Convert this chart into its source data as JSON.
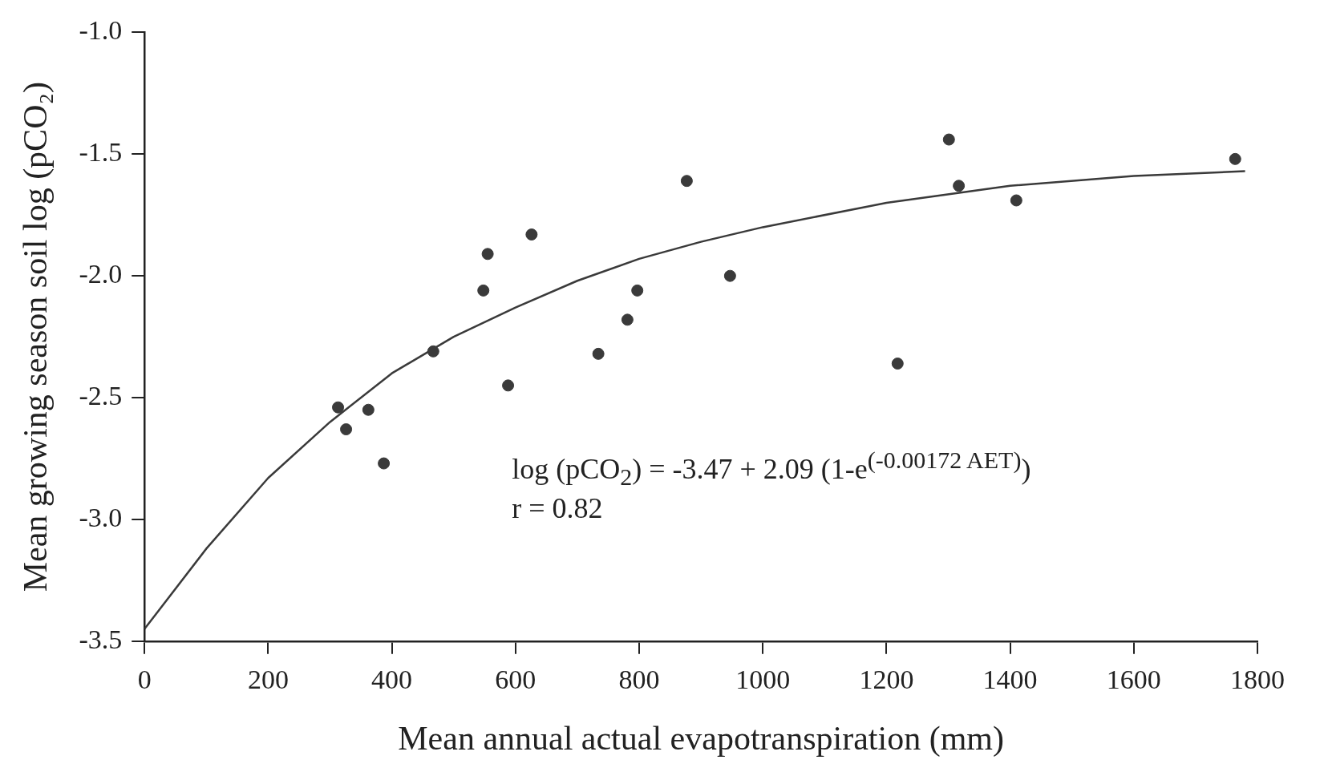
{
  "chart_data": {
    "type": "scatter",
    "xlabel": "Mean annual actual evapotranspiration (mm)",
    "ylabel": "Mean growing season soil log (pCO₂)",
    "xlim": [
      0,
      1800
    ],
    "ylim": [
      -3.5,
      -1.0
    ],
    "xticks": [
      0,
      200,
      400,
      600,
      800,
      1000,
      1200,
      1400,
      1600,
      1800
    ],
    "yticks": [
      {
        "value": -1,
        "label": "-1.0"
      },
      -1.5,
      {
        "value": -2,
        "label": "-2.0"
      },
      -2.5,
      {
        "value": -3,
        "label": "-3.0"
      },
      -3.5
    ],
    "grid": false,
    "legend": false,
    "marker": "circle",
    "annotations": [
      "log (pCO$_{2}$) = -3.47 + 2.09 (1-e$^{(-0.00172 AET)}$)",
      "r = 0.82"
    ],
    "series": [
      {
        "type": "scatter",
        "color": "#3a3a3a",
        "x": [
          313,
          326,
          362,
          387,
          467,
          548,
          555,
          588,
          626,
          734,
          781,
          797,
          877,
          947,
          1218,
          1301,
          1317,
          1410,
          1764
        ],
        "values": [
          -2.54,
          -2.63,
          -2.55,
          -2.77,
          -2.31,
          -2.06,
          -1.91,
          -2.45,
          -1.83,
          -2.32,
          -2.18,
          -2.06,
          -1.61,
          -2.0,
          -2.36,
          -1.44,
          -1.63,
          -1.69,
          -1.52
        ]
      },
      {
        "type": "line",
        "color": "#3a3a3a",
        "marker": "none",
        "line_style": "solid",
        "x": [
          0,
          100,
          200,
          300,
          400,
          500,
          600,
          700,
          800,
          900,
          1000,
          1200,
          1400,
          1600,
          1780
        ],
        "values": [
          -3.45,
          -3.12,
          -2.83,
          -2.6,
          -2.4,
          -2.25,
          -2.13,
          -2.02,
          -1.93,
          -1.86,
          -1.8,
          -1.7,
          -1.63,
          -1.59,
          -1.57
        ]
      }
    ]
  }
}
